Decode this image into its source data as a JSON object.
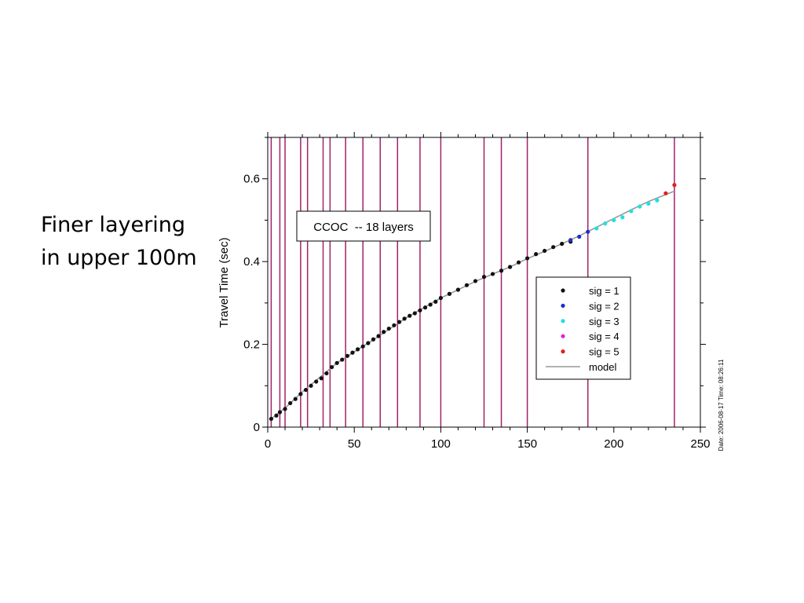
{
  "slide": {
    "caption_line1": "Finer layering",
    "caption_line2": "in upper 100m"
  },
  "chart_data": {
    "type": "scatter",
    "title": "",
    "xlabel": "",
    "ylabel": "Travel Time (sec)",
    "xlim": [
      0,
      250
    ],
    "ylim": [
      0,
      0.7
    ],
    "xticks": [
      0,
      50,
      100,
      150,
      200,
      250
    ],
    "xtick_labels": [
      "0",
      "50",
      "100",
      "150",
      "200",
      "250"
    ],
    "yticks": [
      0,
      0.2,
      0.4,
      0.6
    ],
    "ytick_labels": [
      "0",
      "0.2",
      "0.4",
      "0.6"
    ],
    "grid": false,
    "legend_position": "center-right",
    "annotation": "CCOC  -- 18 layers",
    "side_note": "Date: 2006-08-17 Time: 08:26:11",
    "layer_boundaries": [
      2,
      7,
      10,
      19,
      23,
      32,
      36,
      45,
      55,
      65,
      75,
      88,
      100,
      125,
      135,
      150,
      185,
      235
    ],
    "layer_boundary_color": "#a0226a",
    "series": [
      {
        "name": "sig = 1",
        "color": "#111111",
        "x": [
          2,
          5,
          7,
          10,
          13,
          16,
          19,
          22,
          25,
          28,
          31,
          34,
          37,
          40,
          43,
          46,
          49,
          52,
          55,
          58,
          61,
          64,
          67,
          70,
          73,
          76,
          79,
          82,
          85,
          88,
          91,
          94,
          97,
          100,
          105,
          110,
          115,
          120,
          125,
          130,
          135,
          140,
          145,
          150,
          155,
          160,
          165,
          170,
          175
        ],
        "y": [
          0.02,
          0.028,
          0.036,
          0.044,
          0.058,
          0.068,
          0.08,
          0.09,
          0.1,
          0.11,
          0.118,
          0.13,
          0.145,
          0.155,
          0.163,
          0.172,
          0.18,
          0.188,
          0.195,
          0.203,
          0.212,
          0.22,
          0.23,
          0.238,
          0.246,
          0.254,
          0.262,
          0.269,
          0.275,
          0.282,
          0.289,
          0.296,
          0.303,
          0.312,
          0.322,
          0.332,
          0.343,
          0.353,
          0.363,
          0.37,
          0.378,
          0.387,
          0.398,
          0.408,
          0.418,
          0.426,
          0.435,
          0.443,
          0.448
        ]
      },
      {
        "name": "sig = 2",
        "color": "#1f2fc8",
        "x": [
          175,
          180,
          185
        ],
        "y": [
          0.452,
          0.46,
          0.472
        ]
      },
      {
        "name": "sig = 3",
        "color": "#1fe0e0",
        "x": [
          190,
          195,
          200,
          205,
          210,
          215,
          220,
          225
        ],
        "y": [
          0.48,
          0.492,
          0.5,
          0.507,
          0.522,
          0.533,
          0.54,
          0.548
        ]
      },
      {
        "name": "sig = 4",
        "color": "#e01fe0",
        "x": [],
        "y": []
      },
      {
        "name": "sig = 5",
        "color": "#e01f1f",
        "x": [
          230,
          235
        ],
        "y": [
          0.565,
          0.585
        ]
      }
    ],
    "model": {
      "name": "model",
      "color": "#999999",
      "x": [
        2,
        10,
        20,
        30,
        40,
        50,
        60,
        70,
        80,
        90,
        100,
        110,
        120,
        130,
        140,
        150,
        160,
        170,
        180,
        190,
        200,
        210,
        220,
        230,
        235
      ],
      "y": [
        0.02,
        0.046,
        0.085,
        0.12,
        0.155,
        0.182,
        0.208,
        0.236,
        0.264,
        0.288,
        0.312,
        0.332,
        0.352,
        0.37,
        0.387,
        0.407,
        0.425,
        0.443,
        0.462,
        0.483,
        0.504,
        0.525,
        0.545,
        0.562,
        0.57
      ]
    }
  }
}
